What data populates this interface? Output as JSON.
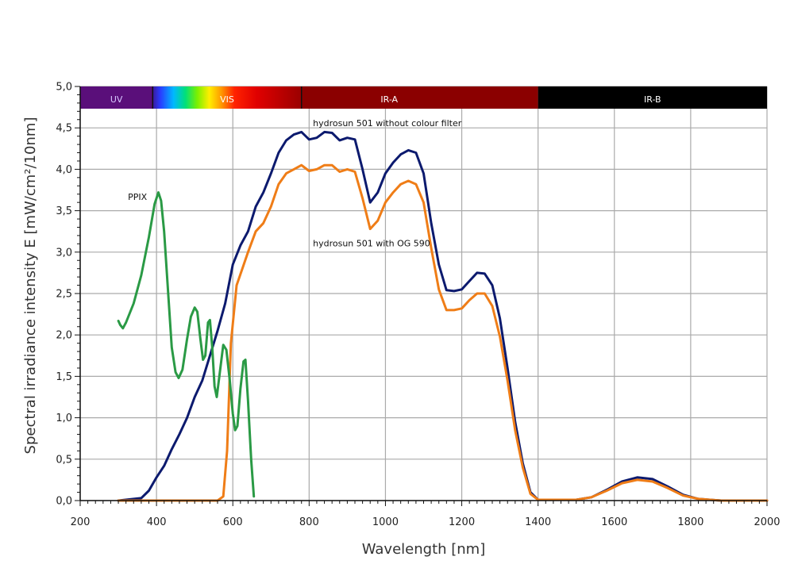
{
  "chart_data": {
    "type": "line",
    "xlabel": "Wavelength [nm]",
    "ylabel": "Spectral irradiance intensity E [mW/cm²/10nm]",
    "xlim": [
      200,
      2000
    ],
    "ylim": [
      0.0,
      5.0
    ],
    "x_ticks": [
      200,
      400,
      600,
      800,
      1000,
      1200,
      1400,
      1600,
      1800,
      2000
    ],
    "y_ticks": [
      "0,0",
      "0,5",
      "1,0",
      "1,5",
      "2,0",
      "2,5",
      "3,0",
      "3,5",
      "4,0",
      "4,5",
      "5,0"
    ],
    "grid": true,
    "spectrum_bands": [
      {
        "label": "UV",
        "from": 200,
        "to": 390,
        "color": "#5a0f7a"
      },
      {
        "label": "VIS",
        "from": 390,
        "to": 780,
        "color": "gradient"
      },
      {
        "label": "IR-A",
        "from": 780,
        "to": 1400,
        "color": "#8b0000"
      },
      {
        "label": "IR-B",
        "from": 1400,
        "to": 2000,
        "color": "#000000"
      }
    ],
    "series": [
      {
        "name": "hydrosun 501 without colour filter",
        "color": "#0c1a6e",
        "points": [
          [
            300,
            0
          ],
          [
            360,
            0.03
          ],
          [
            380,
            0.12
          ],
          [
            400,
            0.28
          ],
          [
            420,
            0.42
          ],
          [
            440,
            0.62
          ],
          [
            460,
            0.8
          ],
          [
            480,
            1.0
          ],
          [
            500,
            1.25
          ],
          [
            520,
            1.45
          ],
          [
            540,
            1.75
          ],
          [
            560,
            2.05
          ],
          [
            580,
            2.38
          ],
          [
            600,
            2.85
          ],
          [
            620,
            3.08
          ],
          [
            640,
            3.25
          ],
          [
            660,
            3.55
          ],
          [
            680,
            3.72
          ],
          [
            700,
            3.95
          ],
          [
            720,
            4.2
          ],
          [
            740,
            4.35
          ],
          [
            760,
            4.42
          ],
          [
            780,
            4.45
          ],
          [
            800,
            4.36
          ],
          [
            820,
            4.38
          ],
          [
            840,
            4.45
          ],
          [
            860,
            4.44
          ],
          [
            880,
            4.35
          ],
          [
            900,
            4.38
          ],
          [
            920,
            4.36
          ],
          [
            940,
            4.0
          ],
          [
            960,
            3.6
          ],
          [
            980,
            3.72
          ],
          [
            1000,
            3.95
          ],
          [
            1020,
            4.08
          ],
          [
            1040,
            4.18
          ],
          [
            1060,
            4.23
          ],
          [
            1080,
            4.2
          ],
          [
            1100,
            3.95
          ],
          [
            1120,
            3.35
          ],
          [
            1140,
            2.85
          ],
          [
            1160,
            2.54
          ],
          [
            1180,
            2.53
          ],
          [
            1200,
            2.55
          ],
          [
            1220,
            2.65
          ],
          [
            1240,
            2.75
          ],
          [
            1260,
            2.74
          ],
          [
            1280,
            2.6
          ],
          [
            1300,
            2.2
          ],
          [
            1320,
            1.6
          ],
          [
            1340,
            0.95
          ],
          [
            1360,
            0.45
          ],
          [
            1380,
            0.1
          ],
          [
            1400,
            0.01
          ],
          [
            1500,
            0.01
          ],
          [
            1540,
            0.04
          ],
          [
            1580,
            0.13
          ],
          [
            1620,
            0.23
          ],
          [
            1660,
            0.28
          ],
          [
            1700,
            0.26
          ],
          [
            1740,
            0.17
          ],
          [
            1780,
            0.07
          ],
          [
            1820,
            0.02
          ],
          [
            1880,
            0.0
          ],
          [
            2000,
            0.0
          ]
        ]
      },
      {
        "name": "hydrosun 501 with OG 590",
        "color": "#ef7d17",
        "points": [
          [
            300,
            0
          ],
          [
            560,
            0
          ],
          [
            575,
            0.05
          ],
          [
            585,
            0.6
          ],
          [
            595,
            1.9
          ],
          [
            610,
            2.6
          ],
          [
            625,
            2.8
          ],
          [
            640,
            3.0
          ],
          [
            660,
            3.25
          ],
          [
            680,
            3.35
          ],
          [
            700,
            3.55
          ],
          [
            720,
            3.82
          ],
          [
            740,
            3.95
          ],
          [
            760,
            4.0
          ],
          [
            780,
            4.05
          ],
          [
            800,
            3.98
          ],
          [
            820,
            4.0
          ],
          [
            840,
            4.05
          ],
          [
            860,
            4.05
          ],
          [
            880,
            3.97
          ],
          [
            900,
            4.0
          ],
          [
            920,
            3.97
          ],
          [
            940,
            3.65
          ],
          [
            960,
            3.28
          ],
          [
            980,
            3.38
          ],
          [
            1000,
            3.6
          ],
          [
            1020,
            3.72
          ],
          [
            1040,
            3.82
          ],
          [
            1060,
            3.86
          ],
          [
            1080,
            3.82
          ],
          [
            1100,
            3.6
          ],
          [
            1120,
            3.05
          ],
          [
            1140,
            2.55
          ],
          [
            1160,
            2.3
          ],
          [
            1180,
            2.3
          ],
          [
            1200,
            2.32
          ],
          [
            1220,
            2.42
          ],
          [
            1240,
            2.5
          ],
          [
            1260,
            2.5
          ],
          [
            1280,
            2.35
          ],
          [
            1300,
            1.98
          ],
          [
            1320,
            1.45
          ],
          [
            1340,
            0.85
          ],
          [
            1360,
            0.4
          ],
          [
            1380,
            0.08
          ],
          [
            1400,
            0.01
          ],
          [
            1500,
            0.01
          ],
          [
            1540,
            0.04
          ],
          [
            1580,
            0.12
          ],
          [
            1620,
            0.21
          ],
          [
            1660,
            0.25
          ],
          [
            1700,
            0.23
          ],
          [
            1740,
            0.15
          ],
          [
            1780,
            0.06
          ],
          [
            1820,
            0.02
          ],
          [
            1880,
            0.0
          ],
          [
            2000,
            0.0
          ]
        ]
      },
      {
        "name": "PPIX",
        "color": "#2a9a45",
        "points": [
          [
            300,
            2.17
          ],
          [
            305,
            2.12
          ],
          [
            312,
            2.08
          ],
          [
            320,
            2.15
          ],
          [
            340,
            2.38
          ],
          [
            360,
            2.72
          ],
          [
            380,
            3.18
          ],
          [
            395,
            3.58
          ],
          [
            405,
            3.72
          ],
          [
            412,
            3.62
          ],
          [
            420,
            3.25
          ],
          [
            430,
            2.55
          ],
          [
            440,
            1.85
          ],
          [
            450,
            1.55
          ],
          [
            458,
            1.48
          ],
          [
            468,
            1.58
          ],
          [
            480,
            1.95
          ],
          [
            490,
            2.22
          ],
          [
            500,
            2.33
          ],
          [
            507,
            2.28
          ],
          [
            515,
            1.95
          ],
          [
            522,
            1.7
          ],
          [
            528,
            1.75
          ],
          [
            535,
            2.15
          ],
          [
            540,
            2.18
          ],
          [
            546,
            1.85
          ],
          [
            552,
            1.38
          ],
          [
            558,
            1.25
          ],
          [
            566,
            1.55
          ],
          [
            575,
            1.88
          ],
          [
            583,
            1.82
          ],
          [
            592,
            1.45
          ],
          [
            600,
            1.05
          ],
          [
            606,
            0.85
          ],
          [
            612,
            0.9
          ],
          [
            620,
            1.35
          ],
          [
            628,
            1.68
          ],
          [
            633,
            1.7
          ],
          [
            640,
            1.2
          ],
          [
            648,
            0.5
          ],
          [
            655,
            0.05
          ]
        ]
      }
    ],
    "annotations": [
      {
        "text": "hydrosun 501 without colour filter",
        "x": 810,
        "y": 4.52
      },
      {
        "text": "hydrosun 501 with OG 590",
        "x": 810,
        "y": 3.07
      },
      {
        "text": "PPIX",
        "x": 325,
        "y": 3.63
      }
    ]
  }
}
